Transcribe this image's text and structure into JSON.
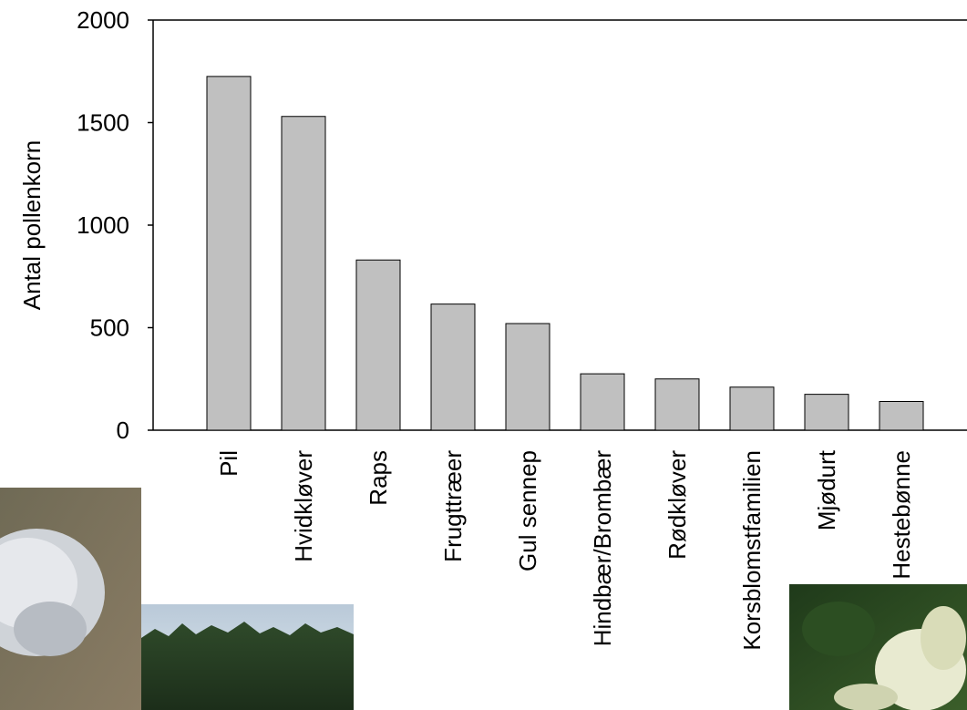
{
  "chart_data": {
    "type": "bar",
    "y_label": "Antal pollenkorn",
    "categories": [
      "Pil",
      "Hvidkløver",
      "Raps",
      "Frugttræer",
      "Gul sennep",
      "Hindbær/Brombær",
      "Rødkløver",
      "Korsblomstfamilien",
      "Mjødurt",
      "Hestebønne"
    ],
    "values": [
      1725,
      1530,
      830,
      615,
      520,
      275,
      250,
      210,
      175,
      140
    ],
    "color": "#c0c0c0",
    "ylim": [
      0,
      2000
    ],
    "yticks": [
      0,
      500,
      1000,
      1500,
      2000
    ],
    "grid": false
  }
}
